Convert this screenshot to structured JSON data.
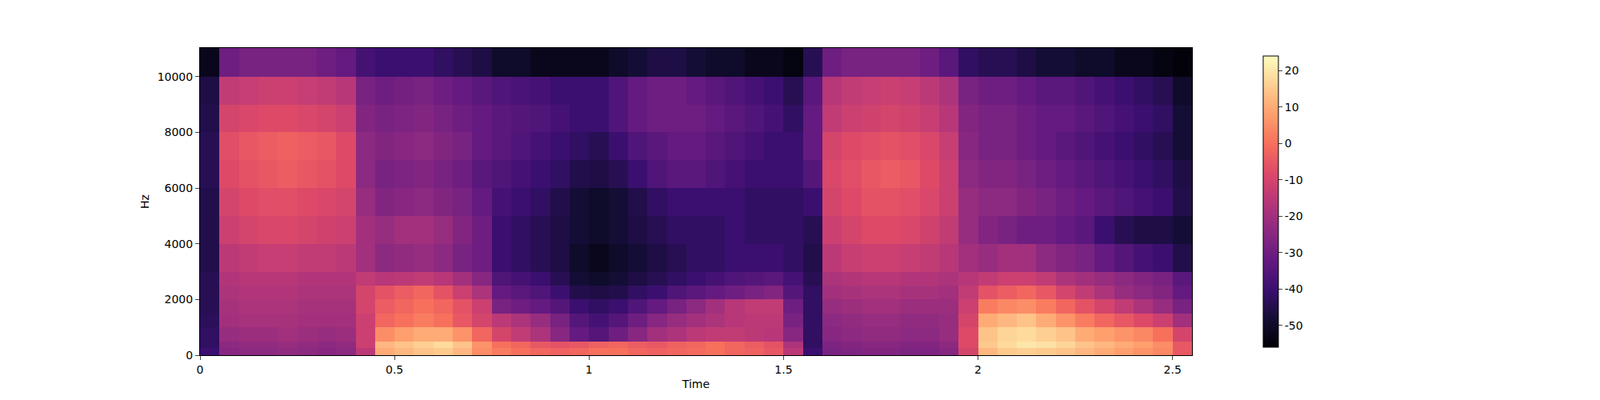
{
  "chart_data": {
    "type": "heatmap",
    "xlabel": "Time",
    "ylabel": "Hz",
    "color": "magma",
    "xlim": [
      0,
      2.55
    ],
    "ylim": [
      0,
      11025
    ],
    "xticks": [
      0,
      0.5,
      1,
      1.5,
      2,
      2.5
    ],
    "yticks": [
      0,
      2000,
      4000,
      6000,
      8000,
      10000
    ],
    "colorbar_range": [
      -56,
      24
    ],
    "colorbar_ticks": [
      -50,
      -40,
      -30,
      -20,
      -10,
      0,
      10,
      20
    ],
    "x_edges": [
      0,
      0.05,
      0.1,
      0.15,
      0.2,
      0.25,
      0.3,
      0.35,
      0.4,
      0.45,
      0.5,
      0.55,
      0.6,
      0.65,
      0.7,
      0.75,
      0.8,
      0.85,
      0.9,
      0.95,
      1,
      1.05,
      1.1,
      1.15,
      1.2,
      1.25,
      1.3,
      1.35,
      1.4,
      1.45,
      1.5,
      1.55,
      1.6,
      1.65,
      1.7,
      1.75,
      1.8,
      1.85,
      1.9,
      1.95,
      2,
      2.05,
      2.1,
      2.15,
      2.2,
      2.25,
      2.3,
      2.35,
      2.4,
      2.45,
      2.5,
      2.55
    ],
    "y_edges": [
      0,
      250,
      500,
      1000,
      1500,
      2000,
      2500,
      3000,
      4000,
      5000,
      6000,
      7000,
      8000,
      9000,
      10000,
      11025
    ],
    "cells": [
      [
        -40,
        -25,
        -24,
        -24,
        -23,
        -24,
        -25,
        -24,
        -15,
        10,
        12,
        14,
        15,
        12,
        5,
        2,
        0,
        -2,
        -3,
        -2,
        0,
        0,
        -2,
        -3,
        -2,
        -1,
        0,
        -2,
        -3,
        -5,
        -15,
        -40,
        -28,
        -27,
        -26,
        -26,
        -27,
        -27,
        -25,
        -10,
        12,
        15,
        16,
        15,
        14,
        12,
        10,
        8,
        6,
        4,
        -5
      ],
      [
        -42,
        -24,
        -23,
        -23,
        -22,
        -23,
        -24,
        -23,
        -12,
        12,
        14,
        16,
        18,
        14,
        6,
        0,
        -2,
        -5,
        -6,
        -5,
        -3,
        -2,
        -4,
        -5,
        -3,
        -2,
        0,
        -2,
        -4,
        -6,
        -18,
        -42,
        -27,
        -26,
        -25,
        -25,
        -26,
        -26,
        -24,
        -8,
        15,
        18,
        20,
        19,
        17,
        14,
        12,
        10,
        8,
        5,
        -5
      ],
      [
        -42,
        -22,
        -21,
        -21,
        -20,
        -21,
        -22,
        -21,
        -12,
        5,
        8,
        10,
        10,
        6,
        -2,
        -10,
        -14,
        -18,
        -25,
        -32,
        -35,
        -30,
        -25,
        -20,
        -18,
        -15,
        -14,
        -14,
        -15,
        -16,
        -25,
        -42,
        -25,
        -24,
        -23,
        -23,
        -24,
        -24,
        -22,
        -8,
        14,
        17,
        18,
        16,
        14,
        10,
        8,
        6,
        4,
        0,
        -10
      ],
      [
        -43,
        -20,
        -19,
        -19,
        -19,
        -20,
        -20,
        -20,
        -12,
        -2,
        0,
        2,
        0,
        -5,
        -10,
        -15,
        -18,
        -22,
        -28,
        -35,
        -38,
        -35,
        -30,
        -25,
        -22,
        -20,
        -18,
        -16,
        -15,
        -15,
        -28,
        -42,
        -24,
        -23,
        -22,
        -22,
        -23,
        -23,
        -22,
        -10,
        10,
        12,
        14,
        10,
        6,
        2,
        -2,
        -5,
        -8,
        -12,
        -20
      ],
      [
        -44,
        -19,
        -18,
        -18,
        -18,
        -19,
        -19,
        -19,
        -10,
        -4,
        -2,
        0,
        -2,
        -6,
        -12,
        -28,
        -30,
        -32,
        -35,
        -40,
        -42,
        -40,
        -36,
        -32,
        -28,
        -24,
        -20,
        -16,
        -14,
        -14,
        -30,
        -42,
        -22,
        -21,
        -20,
        -20,
        -21,
        -21,
        -21,
        -12,
        2,
        4,
        5,
        2,
        -2,
        -6,
        -10,
        -14,
        -18,
        -22,
        -28
      ],
      [
        -44,
        -18,
        -17,
        -17,
        -17,
        -18,
        -18,
        -18,
        -10,
        -6,
        -4,
        -2,
        -6,
        -12,
        -18,
        -32,
        -34,
        -36,
        -40,
        -45,
        -46,
        -45,
        -42,
        -40,
        -36,
        -34,
        -32,
        -30,
        -28,
        -26,
        -35,
        -42,
        -20,
        -19,
        -18,
        -18,
        -19,
        -19,
        -20,
        -14,
        -6,
        -4,
        -2,
        -5,
        -10,
        -14,
        -18,
        -22,
        -24,
        -26,
        -32
      ],
      [
        -44,
        -17,
        -16,
        -16,
        -16,
        -17,
        -17,
        -17,
        -14,
        -16,
        -15,
        -14,
        -16,
        -20,
        -25,
        -36,
        -38,
        -40,
        -44,
        -48,
        -50,
        -48,
        -46,
        -44,
        -42,
        -40,
        -38,
        -36,
        -35,
        -34,
        -38,
        -44,
        -18,
        -17,
        -16,
        -16,
        -17,
        -17,
        -18,
        -16,
        -14,
        -12,
        -12,
        -14,
        -18,
        -20,
        -22,
        -24,
        -26,
        -28,
        -34
      ],
      [
        -45,
        -15,
        -14,
        -13,
        -13,
        -14,
        -14,
        -15,
        -20,
        -24,
        -23,
        -22,
        -24,
        -28,
        -30,
        -40,
        -42,
        -44,
        -46,
        -50,
        -52,
        -50,
        -48,
        -46,
        -44,
        -42,
        -42,
        -40,
        -40,
        -40,
        -42,
        -45,
        -15,
        -13,
        -12,
        -12,
        -13,
        -14,
        -16,
        -20,
        -22,
        -20,
        -20,
        -24,
        -26,
        -28,
        -32,
        -35,
        -38,
        -40,
        -45
      ],
      [
        -45,
        -12,
        -10,
        -9,
        -9,
        -10,
        -11,
        -12,
        -20,
        -22,
        -20,
        -20,
        -22,
        -26,
        -30,
        -40,
        -42,
        -44,
        -46,
        -48,
        -50,
        -48,
        -46,
        -44,
        -42,
        -42,
        -42,
        -40,
        -42,
        -42,
        -42,
        -44,
        -12,
        -10,
        -8,
        -8,
        -9,
        -11,
        -14,
        -22,
        -26,
        -28,
        -30,
        -30,
        -32,
        -34,
        -40,
        -44,
        -46,
        -46,
        -48
      ],
      [
        -45,
        -10,
        -8,
        -7,
        -7,
        -8,
        -9,
        -10,
        -22,
        -26,
        -25,
        -24,
        -26,
        -28,
        -32,
        -38,
        -40,
        -42,
        -45,
        -48,
        -50,
        -48,
        -45,
        -42,
        -40,
        -40,
        -40,
        -40,
        -42,
        -42,
        -42,
        -40,
        -10,
        -8,
        -6,
        -6,
        -7,
        -9,
        -12,
        -22,
        -24,
        -24,
        -26,
        -28,
        -30,
        -32,
        -34,
        -36,
        -38,
        -40,
        -45
      ],
      [
        -44,
        -8,
        -6,
        -5,
        -4,
        -5,
        -6,
        -8,
        -24,
        -28,
        -27,
        -26,
        -28,
        -30,
        -34,
        -36,
        -38,
        -40,
        -42,
        -45,
        -46,
        -44,
        -40,
        -36,
        -34,
        -34,
        -36,
        -38,
        -40,
        -40,
        -40,
        -35,
        -9,
        -7,
        -5,
        -4,
        -5,
        -8,
        -12,
        -24,
        -26,
        -26,
        -28,
        -30,
        -32,
        -34,
        -36,
        -38,
        -40,
        -42,
        -46
      ],
      [
        -44,
        -7,
        -5,
        -4,
        -3,
        -4,
        -5,
        -8,
        -24,
        -26,
        -25,
        -24,
        -26,
        -28,
        -32,
        -34,
        -36,
        -38,
        -40,
        -42,
        -44,
        -40,
        -36,
        -34,
        -32,
        -32,
        -34,
        -36,
        -38,
        -40,
        -40,
        -32,
        -10,
        -8,
        -7,
        -6,
        -7,
        -9,
        -13,
        -25,
        -28,
        -28,
        -30,
        -32,
        -34,
        -36,
        -38,
        -40,
        -42,
        -44,
        -48
      ],
      [
        -45,
        -10,
        -9,
        -8,
        -8,
        -9,
        -10,
        -12,
        -26,
        -28,
        -27,
        -26,
        -28,
        -30,
        -32,
        -34,
        -35,
        -36,
        -38,
        -40,
        -40,
        -36,
        -32,
        -30,
        -30,
        -30,
        -32,
        -34,
        -36,
        -38,
        -42,
        -32,
        -14,
        -12,
        -11,
        -10,
        -11,
        -13,
        -16,
        -26,
        -28,
        -28,
        -30,
        -32,
        -32,
        -34,
        -36,
        -38,
        -40,
        -42,
        -48
      ],
      [
        -46,
        -14,
        -13,
        -12,
        -12,
        -13,
        -14,
        -16,
        -28,
        -30,
        -29,
        -28,
        -30,
        -32,
        -34,
        -36,
        -37,
        -38,
        -40,
        -40,
        -40,
        -36,
        -32,
        -30,
        -30,
        -32,
        -34,
        -36,
        -38,
        -40,
        -44,
        -34,
        -16,
        -14,
        -13,
        -12,
        -13,
        -15,
        -18,
        -28,
        -30,
        -30,
        -32,
        -34,
        -34,
        -36,
        -38,
        -40,
        -42,
        -44,
        -50
      ],
      [
        -52,
        -30,
        -28,
        -28,
        -28,
        -28,
        -30,
        -32,
        -38,
        -40,
        -40,
        -40,
        -42,
        -44,
        -46,
        -50,
        -50,
        -52,
        -52,
        -52,
        -52,
        -50,
        -48,
        -46,
        -46,
        -48,
        -50,
        -50,
        -52,
        -52,
        -54,
        -44,
        -30,
        -28,
        -28,
        -28,
        -28,
        -30,
        -34,
        -42,
        -44,
        -44,
        -46,
        -48,
        -48,
        -50,
        -50,
        -52,
        -52,
        -54,
        -55
      ]
    ]
  }
}
